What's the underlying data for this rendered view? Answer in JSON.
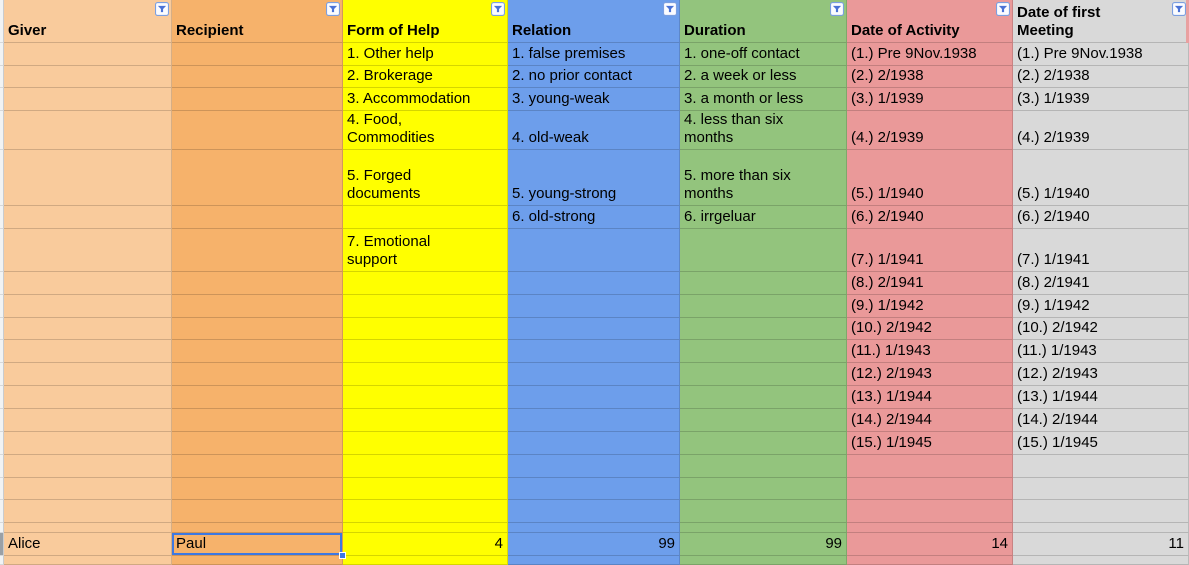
{
  "columns": [
    {
      "id": "giver",
      "header": "Giver",
      "color": "#F9CB9C",
      "cells": {
        "r21": "Alice"
      }
    },
    {
      "id": "recipient",
      "header": "Recipient",
      "color": "#F6B26B",
      "cells": {
        "r21": "Paul"
      }
    },
    {
      "id": "form-of-help",
      "header": "Form of Help",
      "color": "#FFFF00",
      "cells": {
        "r2": "1. Other help",
        "r3": "2. Brokerage",
        "r4": "3. Accommodation",
        "r5": "4. Food,\nCommodities",
        "r6": "5. Forged\ndocuments",
        "r8": "7. Emotional\nsupport",
        "r21": "4"
      }
    },
    {
      "id": "relation",
      "header": "Relation",
      "color": "#6D9EEB",
      "cells": {
        "r2": "1. false premises",
        "r3": "2. no prior contact",
        "r4": "3. young-weak",
        "r5": "4. old-weak",
        "r6": "5. young-strong",
        "r7": "6. old-strong",
        "r21": "99"
      }
    },
    {
      "id": "duration",
      "header": "Duration",
      "color": "#93C47D",
      "cells": {
        "r2": "1. one-off contact",
        "r3": "2. a week or less",
        "r4": "3. a month or less",
        "r5": "4. less than six\nmonths",
        "r6": "5. more than six\nmonths",
        "r7": "6. irrgeluar",
        "r21": "99"
      }
    },
    {
      "id": "date-of-activity",
      "header": "Date of Activity",
      "color": "#EA9999",
      "cells": {
        "r2": "(1.) Pre 9Nov.1938",
        "r3": "(2.) 2/1938",
        "r4": "(3.) 1/1939",
        "r5": "(4.) 2/1939",
        "r6": "(5.) 1/1940",
        "r7": "(6.) 2/1940",
        "r8": "(7.) 1/1941",
        "r9": "(8.) 2/1941",
        "r10": "(9.) 1/1942",
        "r11": "(10.) 2/1942",
        "r12": "(11.) 1/1943",
        "r13": "(12.) 2/1943",
        "r14": "(13.) 1/1944",
        "r15": "(14.) 2/1944",
        "r16": "(15.) 1/1945",
        "r21": "14"
      }
    },
    {
      "id": "date-of-first-meeting",
      "header": "Date of first\nMeeting",
      "color": "#D9D9D9",
      "cells": {
        "r2": "(1.) Pre 9Nov.1938",
        "r3": "(2.) 2/1938",
        "r4": "(3.) 1/1939",
        "r5": "(4.) 2/1939",
        "r6": "(5.) 1/1940",
        "r7": "(6.) 2/1940",
        "r8": "(7.) 1/1941",
        "r9": "(8.) 2/1941",
        "r10": "(9.) 1/1942",
        "r11": "(10.) 2/1942",
        "r12": "(11.) 1/1943",
        "r13": "(12.) 2/1943",
        "r14": "(13.) 1/1944",
        "r15": "(14.) 2/1944",
        "r16": "(15.) 1/1945",
        "r21": "11"
      }
    }
  ],
  "filter_button": {
    "glyph": "funnel-down",
    "background": "#fbfcff",
    "border_color": "#7b9fe0",
    "funnel_color": "#4a72d6"
  },
  "selection": {
    "column_index": 1,
    "row_key": "r21",
    "color": "#3d78e2"
  },
  "gutter": {
    "bg": "#f1f3f4",
    "selected_bg": "#9aa0a6"
  },
  "right_sliver": {
    "color": "#e9a0a0"
  }
}
